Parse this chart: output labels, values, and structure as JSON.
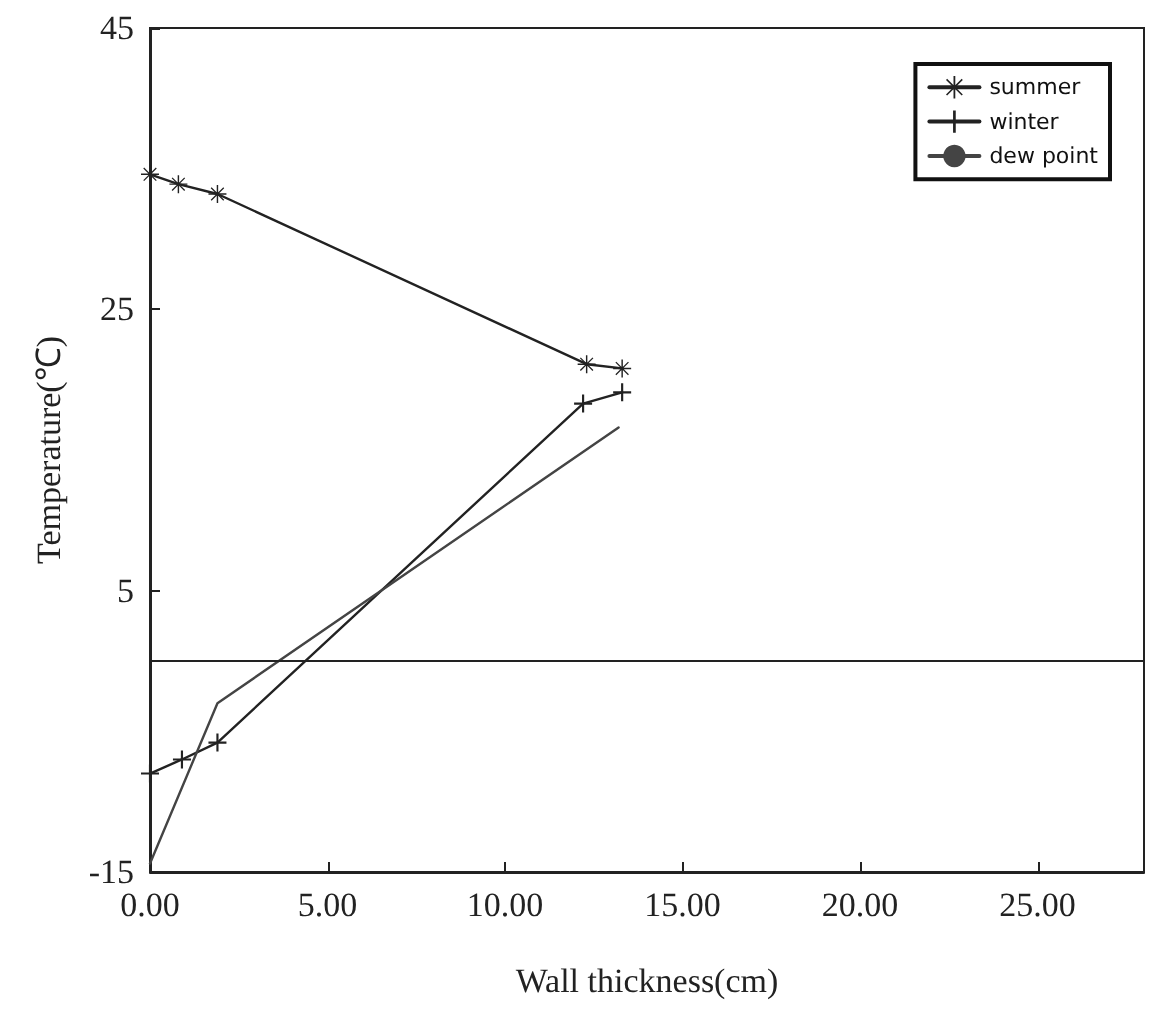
{
  "chart_data": {
    "type": "line",
    "xlabel": "Wall thickness(cm)",
    "ylabel": "Temperature(℃)",
    "series": [
      {
        "name": "summer",
        "color": "#222222",
        "marker": "star",
        "x": [
          0,
          0.8,
          1.9,
          12.3,
          13.3
        ],
        "values": [
          34.6,
          33.9,
          33.2,
          21.1,
          20.8
        ]
      },
      {
        "name": "winter",
        "color": "#222222",
        "marker": "cross",
        "x": [
          0,
          0.9,
          1.9,
          12.2,
          13.3
        ],
        "values": [
          -8.0,
          -7.0,
          -5.8,
          18.3,
          19.1
        ]
      },
      {
        "name": "dew point",
        "color": "#444444",
        "marker": "none",
        "x": [
          0,
          1.9,
          13.2
        ],
        "values": [
          -14.4,
          -3.0,
          16.6
        ]
      }
    ],
    "xlim": [
      0,
      28
    ],
    "xticks": [
      {
        "value": 0,
        "label": "0.00"
      },
      {
        "value": 5,
        "label": "5.00"
      },
      {
        "value": 10,
        "label": "10.00"
      },
      {
        "value": 15,
        "label": "15.00"
      },
      {
        "value": 20,
        "label": "20.00"
      },
      {
        "value": 25,
        "label": "25.00"
      }
    ],
    "ylim": [
      -15,
      45
    ],
    "yticks": [
      -15,
      5,
      25,
      45
    ],
    "ref_lines": [
      {
        "axis": "y",
        "value": 0,
        "color": "#222222"
      }
    ],
    "grid": false,
    "legend": "top right",
    "line_style": "solid"
  }
}
